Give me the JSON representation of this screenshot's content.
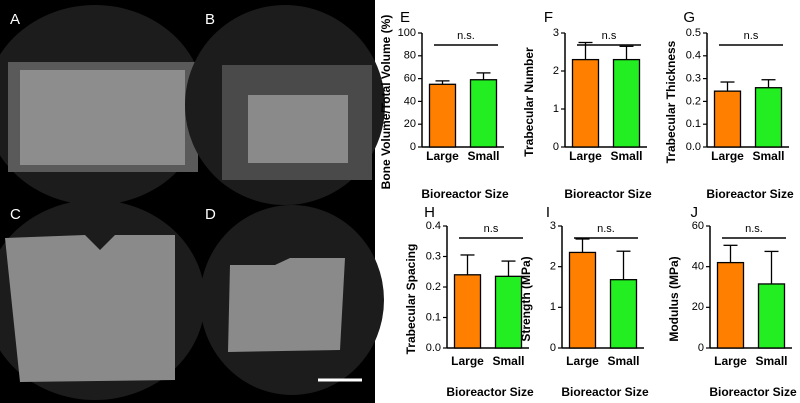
{
  "image_panels": [
    "A",
    "B",
    "C",
    "D"
  ],
  "chart_data": [
    {
      "type": "bar",
      "panel_label": "E",
      "ylabel": "Bone Volume/Total Volume (%)",
      "xlabel": "Bioreactor Size",
      "annotation": "n.s.",
      "categories": [
        "Large",
        "Small"
      ],
      "values": [
        55,
        59
      ],
      "errors": [
        3,
        6
      ],
      "colors": [
        "#ff8000",
        "#22ee22"
      ],
      "ylim": [
        0,
        100
      ],
      "yticks": [
        0,
        20,
        40,
        60,
        80,
        100
      ]
    },
    {
      "type": "bar",
      "panel_label": "F",
      "ylabel": "Trabecular Number",
      "xlabel": "Bioreactor Size",
      "annotation": "n.s",
      "categories": [
        "Large",
        "Small"
      ],
      "values": [
        2.3,
        2.3
      ],
      "errors": [
        0.45,
        0.35
      ],
      "colors": [
        "#ff8000",
        "#22ee22"
      ],
      "ylim": [
        0,
        3
      ],
      "yticks": [
        0,
        1,
        2,
        3
      ]
    },
    {
      "type": "bar",
      "panel_label": "G",
      "ylabel": "Trabecular Thickness",
      "xlabel": "Bioreactor Size",
      "annotation": "n.s",
      "categories": [
        "Large",
        "Small"
      ],
      "values": [
        0.245,
        0.26
      ],
      "errors": [
        0.04,
        0.035
      ],
      "colors": [
        "#ff8000",
        "#22ee22"
      ],
      "ylim": [
        0,
        0.5
      ],
      "yticks": [
        {
          "value": 0,
          "label": "0.0"
        },
        0.1,
        0.2,
        0.3,
        0.4,
        0.5
      ]
    },
    {
      "type": "bar",
      "panel_label": "H",
      "ylabel": "Trabecular Spacing",
      "xlabel": "Bioreactor Size",
      "annotation": "n.s",
      "categories": [
        "Large",
        "Small"
      ],
      "values": [
        0.24,
        0.235
      ],
      "errors": [
        0.065,
        0.05
      ],
      "colors": [
        "#ff8000",
        "#22ee22"
      ],
      "ylim": [
        0,
        0.4
      ],
      "yticks": [
        {
          "value": 0,
          "label": "0.0"
        },
        0.1,
        0.2,
        0.3,
        0.4
      ]
    },
    {
      "type": "bar",
      "panel_label": "I",
      "ylabel": "Strength (MPa)",
      "xlabel": "Bioreactor Size",
      "annotation": "n.s.",
      "categories": [
        "Large",
        "Small"
      ],
      "values": [
        2.35,
        1.68
      ],
      "errors": [
        0.33,
        0.7
      ],
      "colors": [
        "#ff8000",
        "#22ee22"
      ],
      "ylim": [
        0,
        3
      ],
      "yticks": [
        0,
        1,
        2,
        3
      ]
    },
    {
      "type": "bar",
      "panel_label": "J",
      "ylabel": "Modulus (MPa)",
      "xlabel": "Bioreactor Size",
      "annotation": "n.s.",
      "categories": [
        "Large",
        "Small"
      ],
      "values": [
        42,
        31.5
      ],
      "errors": [
        8.5,
        16
      ],
      "colors": [
        "#ff8000",
        "#22ee22"
      ],
      "ylim": [
        0,
        60
      ],
      "yticks": [
        0,
        20,
        40,
        60
      ]
    }
  ]
}
